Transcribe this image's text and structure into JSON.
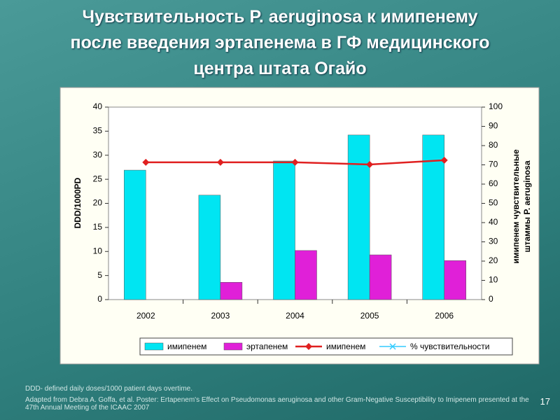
{
  "title_lines": [
    "Чувствительность P. aeruginosa  к имипенему",
    "после введения эртапенема в ГФ медицинского",
    "центра штата Огайо"
  ],
  "chart_data": {
    "type": "bar",
    "categories": [
      "2002",
      "2003",
      "2004",
      "2005",
      "2006"
    ],
    "series": [
      {
        "name": "имипенем",
        "color": "#00e5f2",
        "values": [
          26.9,
          21.7,
          28.8,
          34.2,
          34.2
        ]
      },
      {
        "name": "эртапенем",
        "color": "#e020d8",
        "values": [
          null,
          3.6,
          10.2,
          9.3,
          8.1
        ]
      },
      {
        "name": "имипенем",
        "type": "line",
        "axis": "y2",
        "color": "#e02020",
        "values": [
          71.3,
          71.3,
          71.3,
          70.2,
          72.4
        ]
      },
      {
        "name": "% чувствительности",
        "type": "line",
        "axis": "y2",
        "color": "#33ccff",
        "values": [
          null,
          null,
          null,
          null,
          null
        ]
      }
    ],
    "ylabel": "DDD/1000PD",
    "y2label_lines": [
      "имипенем чувствительные",
      "штаммы P. aeruginosa"
    ],
    "ylim": [
      0,
      40
    ],
    "yticks": [
      0,
      5,
      10,
      15,
      20,
      25,
      30,
      35,
      40
    ],
    "y2lim": [
      0,
      100
    ],
    "y2ticks": [
      0,
      10,
      20,
      30,
      40,
      50,
      60,
      70,
      80,
      90,
      100
    ],
    "legend": "bottom"
  },
  "footnotes": [
    "DDD- defined daily doses/1000 patient days overtime.",
    "Adapted from Debra A. Goffa, et al. Poster: Ertapenem's Effect on Pseudomonas aeruginosa and other  Gram-Negative Susceptibility to Imipenem presented at the 47th Annual Meeting of the ICAAC 2007"
  ],
  "page_number": "17"
}
